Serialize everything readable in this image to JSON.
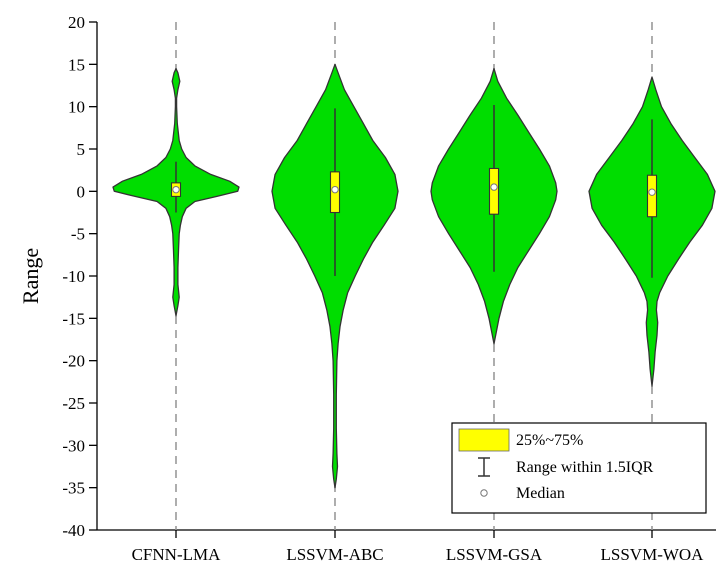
{
  "chart_data": {
    "type": "violin",
    "title": "",
    "xlabel": "",
    "ylabel": "Range",
    "ylim": [
      -40,
      20
    ],
    "yticks": [
      20,
      15,
      10,
      5,
      0,
      -5,
      -10,
      -15,
      -20,
      -25,
      -30,
      -35,
      -40
    ],
    "categories": [
      "CFNN-LMA",
      "LSSVM-ABC",
      "LSSVM-GSA",
      "LSSVM-WOA"
    ],
    "grid": false,
    "legend_position": "bottom-right",
    "colors": {
      "violin_fill": "#00dd00",
      "violin_stroke": "#333333",
      "box_fill": "#ffff00",
      "center_line": "#999999"
    },
    "series": [
      {
        "name": "CFNN-LMA",
        "q1": -0.6,
        "q3": 1.0,
        "median": 0.2,
        "whisker_low": -2.5,
        "whisker_high": 3.5,
        "density": [
          [
            14.5,
            0
          ],
          [
            14,
            0.03
          ],
          [
            13,
            0.06
          ],
          [
            12,
            0.03
          ],
          [
            11,
            0.01
          ],
          [
            10,
            0.01
          ],
          [
            8,
            0.02
          ],
          [
            6,
            0.05
          ],
          [
            5,
            0.09
          ],
          [
            4,
            0.16
          ],
          [
            3,
            0.3
          ],
          [
            2,
            0.55
          ],
          [
            1.2,
            0.85
          ],
          [
            0.5,
            1.0
          ],
          [
            0,
            0.98
          ],
          [
            -0.6,
            0.65
          ],
          [
            -1.2,
            0.3
          ],
          [
            -2,
            0.16
          ],
          [
            -3,
            0.1
          ],
          [
            -4,
            0.07
          ],
          [
            -5,
            0.05
          ],
          [
            -7,
            0.04
          ],
          [
            -9,
            0.03
          ],
          [
            -11,
            0.03
          ],
          [
            -12.5,
            0.05
          ],
          [
            -13.5,
            0.03
          ],
          [
            -14.7,
            0
          ]
        ]
      },
      {
        "name": "LSSVM-ABC",
        "q1": -2.5,
        "q3": 2.3,
        "median": 0.2,
        "whisker_low": -10,
        "whisker_high": 9.8,
        "density": [
          [
            15,
            0
          ],
          [
            14,
            0.05
          ],
          [
            12,
            0.15
          ],
          [
            10,
            0.3
          ],
          [
            8,
            0.45
          ],
          [
            6,
            0.6
          ],
          [
            4,
            0.8
          ],
          [
            2,
            0.95
          ],
          [
            0,
            1.0
          ],
          [
            -2,
            0.95
          ],
          [
            -4,
            0.78
          ],
          [
            -6,
            0.6
          ],
          [
            -8,
            0.45
          ],
          [
            -10,
            0.32
          ],
          [
            -12,
            0.2
          ],
          [
            -14,
            0.13
          ],
          [
            -16,
            0.08
          ],
          [
            -18,
            0.05
          ],
          [
            -20,
            0.03
          ],
          [
            -24,
            0.02
          ],
          [
            -28,
            0.02
          ],
          [
            -31,
            0.03
          ],
          [
            -32.5,
            0.04
          ],
          [
            -34,
            0.02
          ],
          [
            -35,
            0
          ]
        ]
      },
      {
        "name": "LSSVM-GSA",
        "q1": -2.7,
        "q3": 2.7,
        "median": 0.5,
        "whisker_low": -9.5,
        "whisker_high": 10.2,
        "density": [
          [
            14.5,
            0
          ],
          [
            13,
            0.06
          ],
          [
            11,
            0.2
          ],
          [
            9,
            0.38
          ],
          [
            7,
            0.55
          ],
          [
            5,
            0.72
          ],
          [
            3,
            0.88
          ],
          [
            1,
            0.98
          ],
          [
            0,
            1.0
          ],
          [
            -1,
            0.98
          ],
          [
            -3,
            0.88
          ],
          [
            -5,
            0.72
          ],
          [
            -7,
            0.55
          ],
          [
            -9,
            0.38
          ],
          [
            -11,
            0.25
          ],
          [
            -13,
            0.15
          ],
          [
            -15,
            0.08
          ],
          [
            -16.5,
            0.04
          ],
          [
            -18,
            0
          ]
        ]
      },
      {
        "name": "LSSVM-WOA",
        "q1": -3.0,
        "q3": 1.9,
        "median": -0.1,
        "whisker_low": -10.2,
        "whisker_high": 8.5,
        "density": [
          [
            13.5,
            0
          ],
          [
            12,
            0.06
          ],
          [
            10,
            0.15
          ],
          [
            8,
            0.3
          ],
          [
            6,
            0.48
          ],
          [
            4,
            0.68
          ],
          [
            2,
            0.88
          ],
          [
            0,
            1.0
          ],
          [
            -2,
            0.95
          ],
          [
            -4,
            0.8
          ],
          [
            -6,
            0.6
          ],
          [
            -8,
            0.42
          ],
          [
            -10,
            0.25
          ],
          [
            -12,
            0.12
          ],
          [
            -13,
            0.08
          ],
          [
            -14,
            0.07
          ],
          [
            -15.5,
            0.09
          ],
          [
            -17,
            0.08
          ],
          [
            -19,
            0.05
          ],
          [
            -21,
            0.03
          ],
          [
            -23,
            0
          ]
        ]
      }
    ],
    "legend": [
      {
        "key": "box",
        "label": "25%~75%"
      },
      {
        "key": "whisker",
        "label": "Range within 1.5IQR"
      },
      {
        "key": "median",
        "label": "Median"
      }
    ]
  }
}
